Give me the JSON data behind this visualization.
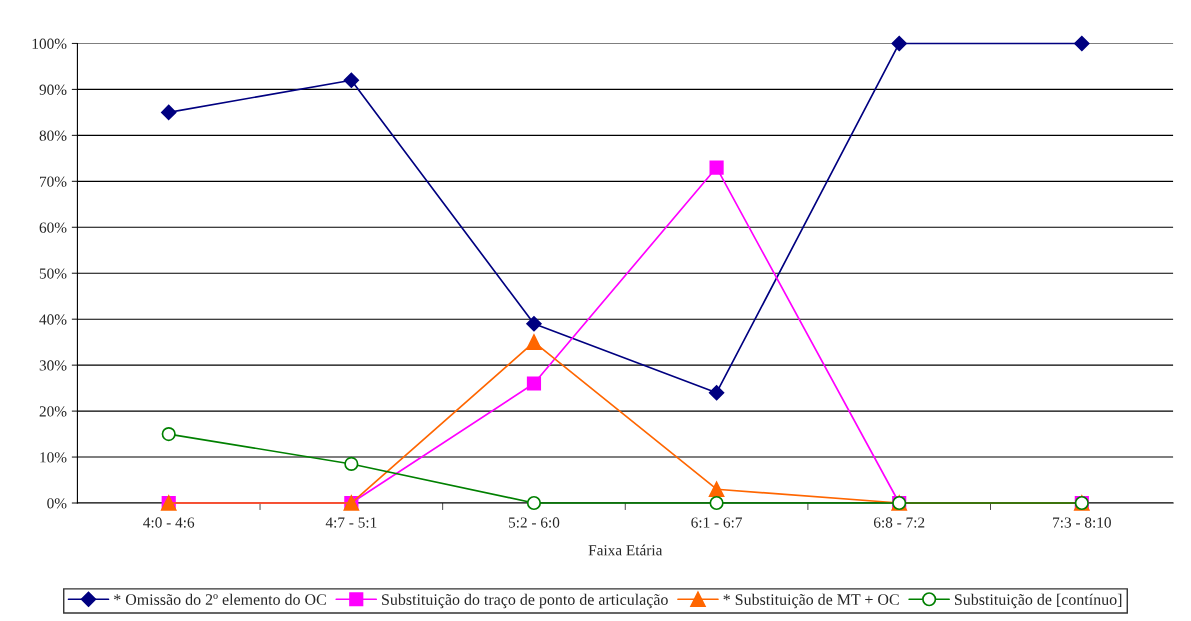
{
  "chart_data": {
    "type": "line",
    "xlabel": "Faixa Etária",
    "categories": [
      "4:0 - 4:6",
      "4:7 - 5:1",
      "5:2 - 6:0",
      "6:1 - 6:7",
      "6:8 - 7:2",
      "7:3 - 8:10"
    ],
    "series": [
      {
        "name": "* Omissão do 2º elemento do OC",
        "color": "#000080",
        "marker": "diamond",
        "values": [
          85,
          92,
          39,
          24,
          100,
          100
        ]
      },
      {
        "name": "Substituição do traço de ponto de articulação",
        "color": "#ff00ff",
        "marker": "square",
        "values": [
          0,
          0,
          26,
          73,
          0,
          0
        ]
      },
      {
        "name": "* Substituição de MT + OC",
        "color": "#ff6600",
        "marker": "triangle",
        "values": [
          0,
          0,
          35,
          3,
          0,
          0
        ]
      },
      {
        "name": "Substituição de [contínuo]",
        "color": "#008000",
        "marker": "circle",
        "values": [
          15,
          8.5,
          0,
          0,
          0,
          0
        ]
      }
    ],
    "ylim": [
      0,
      100
    ],
    "yticks": [
      {
        "value": 0,
        "label": "0%"
      },
      {
        "value": 10,
        "label": "10%"
      },
      {
        "value": 20,
        "label": "20%"
      },
      {
        "value": 30,
        "label": "30%"
      },
      {
        "value": 40,
        "label": "40%"
      },
      {
        "value": 50,
        "label": "50%"
      },
      {
        "value": 60,
        "label": "60%"
      },
      {
        "value": 70,
        "label": "70%"
      },
      {
        "value": 80,
        "label": "80%"
      },
      {
        "value": 90,
        "label": "90%"
      },
      {
        "value": 100,
        "label": "100%"
      }
    ],
    "grid": "y",
    "legend": "bottom"
  }
}
